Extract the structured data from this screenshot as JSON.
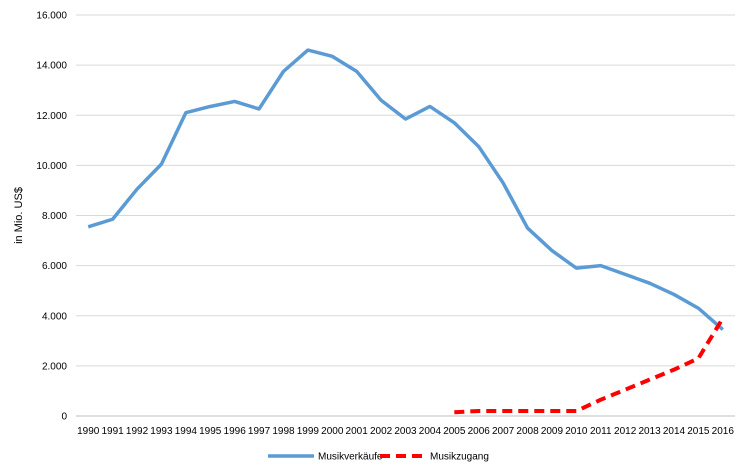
{
  "chart_data": {
    "type": "line",
    "title": "",
    "xlabel": "",
    "ylabel": "in Mio. US$",
    "ylim": [
      0,
      16000
    ],
    "yticks": [
      "0",
      "2.000",
      "4.000",
      "6.000",
      "8.000",
      "10.000",
      "12.000",
      "14.000",
      "16.000"
    ],
    "grid": "horizontal",
    "legend_position": "bottom",
    "categories": [
      "1990",
      "1991",
      "1992",
      "1993",
      "1994",
      "1995",
      "1996",
      "1997",
      "1998",
      "1999",
      "2000",
      "2001",
      "2002",
      "2003",
      "2004",
      "2005",
      "2006",
      "2007",
      "2008",
      "2009",
      "2010",
      "2011",
      "2012",
      "2013",
      "2014",
      "2015",
      "2016"
    ],
    "series": [
      {
        "name": "Musikverkäufe",
        "color": "#5B9BD5",
        "style": "solid",
        "values": [
          7550,
          7850,
          9050,
          10050,
          12100,
          12350,
          12550,
          12250,
          13750,
          14600,
          14350,
          13750,
          12600,
          11850,
          12350,
          11700,
          10750,
          9300,
          7500,
          6600,
          5900,
          6000,
          5650,
          5300,
          4850,
          4300,
          3450
        ]
      },
      {
        "name": "Musikzugang",
        "color": "#FF0000",
        "style": "dashed",
        "values": [
          null,
          null,
          null,
          null,
          null,
          null,
          null,
          null,
          null,
          null,
          null,
          null,
          null,
          null,
          null,
          150,
          200,
          200,
          200,
          200,
          200,
          650,
          1050,
          1450,
          1850,
          2300,
          3900
        ]
      }
    ]
  }
}
